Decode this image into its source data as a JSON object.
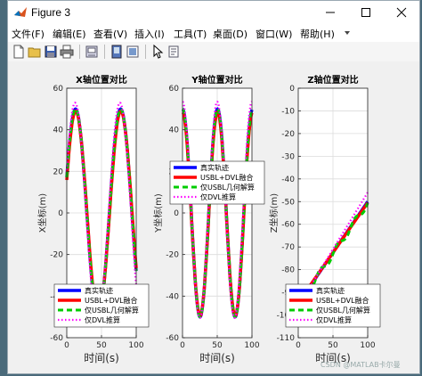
{
  "window": {
    "title": "Figure 3",
    "colors": {
      "accent": "#0072bd",
      "titlebar": "#ffffff"
    }
  },
  "window_controls": {
    "minimize": "minimize-icon",
    "maximize": "maximize-icon",
    "close": "close-icon"
  },
  "menu": {
    "items": [
      {
        "label": "文件(F)"
      },
      {
        "label": "编辑(E)"
      },
      {
        "label": "查看(V)"
      },
      {
        "label": "插入(I)"
      },
      {
        "label": "工具(T)"
      },
      {
        "label": "桌面(D)"
      },
      {
        "label": "窗口(W)"
      },
      {
        "label": "帮助(H)"
      }
    ]
  },
  "toolbar": {
    "icons": [
      "new-figure-icon",
      "open-file-icon",
      "save-icon",
      "print-icon",
      "link-icon",
      "dock-icon",
      "property-editor-icon",
      "pointer-icon",
      "brush-icon"
    ]
  },
  "watermark": "CSDN @MATLAB卡尔曼",
  "chart_data": [
    {
      "type": "line",
      "title": "X轴位置对比",
      "xlabel": "时间(s)",
      "ylabel": "X坐标(m)",
      "xlim": [
        0,
        100
      ],
      "ylim": [
        -60,
        60
      ],
      "xticks": [
        "0",
        "50",
        "100"
      ],
      "yticks": [
        "-60",
        "-40",
        "-20",
        "0",
        "20",
        "40",
        "60"
      ],
      "grid": true,
      "legend_position": "bottom-left",
      "series": [
        {
          "name": "真实轨迹",
          "color": "#0000ff",
          "style": "solid"
        },
        {
          "name": "USBL+DVL融合",
          "color": "#ff0000",
          "style": "solid"
        },
        {
          "name": "仅USBL几何解算",
          "color": "#00cc00",
          "style": "dashed"
        },
        {
          "name": "仅DVL推算",
          "color": "#ff00ff",
          "style": "dotted"
        }
      ]
    },
    {
      "type": "line",
      "title": "Y轴位置对比",
      "xlabel": "时间(s)",
      "ylabel": "Y坐标(m)",
      "xlim": [
        0,
        100
      ],
      "ylim": [
        -60,
        60
      ],
      "xticks": [
        "0",
        "50",
        "100"
      ],
      "yticks": [
        "-60",
        "-40",
        "-20",
        "0",
        "20",
        "40",
        "60"
      ],
      "grid": true,
      "legend_position": "middle-right",
      "series": [
        {
          "name": "真实轨迹",
          "color": "#0000ff",
          "style": "solid"
        },
        {
          "name": "USBL+DVL融合",
          "color": "#ff0000",
          "style": "solid"
        },
        {
          "name": "仅USBL几何解算",
          "color": "#00cc00",
          "style": "dashed"
        },
        {
          "name": "仅DVL推算",
          "color": "#ff00ff",
          "style": "dotted"
        }
      ]
    },
    {
      "type": "line",
      "title": "Z轴位置对比",
      "xlabel": "时间(s)",
      "ylabel": "Z坐标(m)",
      "xlim": [
        0,
        100
      ],
      "ylim": [
        -110,
        0
      ],
      "xticks": [
        "0",
        "50",
        "100"
      ],
      "yticks": [
        "-110",
        "-100",
        "-90",
        "-80",
        "-70",
        "-60",
        "-50",
        "-40",
        "-30",
        "-20",
        "-10",
        "0"
      ],
      "grid": true,
      "legend_position": "bottom-right",
      "series": [
        {
          "name": "真实轨迹",
          "color": "#0000ff",
          "style": "solid"
        },
        {
          "name": "USBL+DVL融合",
          "color": "#ff0000",
          "style": "solid"
        },
        {
          "name": "仅USBL几何解算",
          "color": "#00cc00",
          "style": "dashed"
        },
        {
          "name": "仅DVL推算",
          "color": "#ff00ff",
          "style": "dotted"
        }
      ]
    }
  ]
}
